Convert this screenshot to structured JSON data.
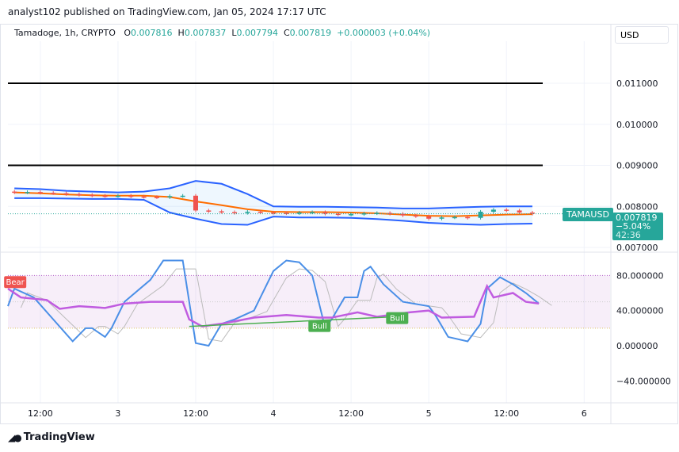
{
  "header": {
    "published": "analyst102 published on TradingView.com, Jan 05, 2024 17:17 UTC"
  },
  "legend": {
    "symbol": "Tamadoge, 1h, CRYPTO",
    "o_label": "O",
    "o": "0.007816",
    "h_label": "H",
    "h": "0.007837",
    "l_label": "L",
    "l": "0.007794",
    "c_label": "C",
    "c": "0.007819",
    "change": "+0.000003 (+0.04%)"
  },
  "currency": "USD",
  "price_tag": {
    "symbol": "TAMAUSD",
    "price": "0.007819",
    "change": "−5.04%",
    "countdown": "42:36"
  },
  "footer": {
    "brand": "TradingView"
  },
  "colors": {
    "up": "#26a69a",
    "down": "#ef5350",
    "band": "#2962ff",
    "mid": "#ff6d00",
    "stoch": "#4a8fe7",
    "rsi": "#c05ce0"
  },
  "chart_data": {
    "type": "candlestick",
    "price_axis": {
      "ticks": [
        "0.011000",
        "0.010000",
        "0.009000",
        "0.008000",
        "0.007000"
      ],
      "values": [
        0.011,
        0.01,
        0.009,
        0.008,
        0.007
      ],
      "range": [
        0.00685,
        0.01135
      ]
    },
    "time_axis": {
      "labels": [
        "12:00",
        "3",
        "12:00",
        "4",
        "12:00",
        "5",
        "12:00",
        "6"
      ],
      "hours": [
        5,
        17,
        29,
        41,
        53,
        65,
        77,
        89
      ],
      "range": [
        0,
        93
      ]
    },
    "horizontal_lines": [
      0.011,
      0.009
    ],
    "closes_every_2h": [
      0.00834,
      0.00835,
      0.00833,
      0.00832,
      0.0083,
      0.00828,
      0.00826,
      0.00825,
      0.00826,
      0.00824,
      0.00823,
      0.00822,
      0.00825,
      0.00826,
      0.0079,
      0.00788,
      0.00786,
      0.00784,
      0.00787,
      0.00785,
      0.00784,
      0.00783,
      0.00785,
      0.00786,
      0.00782,
      0.0078,
      0.00781,
      0.00783,
      0.00784,
      0.00782,
      0.00778,
      0.00776,
      0.0077,
      0.00773,
      0.00774,
      0.00772,
      0.00787,
      0.00792,
      0.0079,
      0.00785,
      0.00782
    ],
    "bollinger_every_4h": {
      "upper": [
        0.00844,
        0.00842,
        0.00838,
        0.00836,
        0.00834,
        0.00836,
        0.00844,
        0.00862,
        0.00855,
        0.0083,
        0.008,
        0.00799,
        0.00799,
        0.00798,
        0.00797,
        0.00795,
        0.00795,
        0.00797,
        0.00799,
        0.008,
        0.008
      ],
      "middle": [
        0.00834,
        0.00832,
        0.00829,
        0.00827,
        0.00826,
        0.00826,
        0.00823,
        0.00812,
        0.00803,
        0.00793,
        0.00787,
        0.00786,
        0.00786,
        0.00785,
        0.00783,
        0.0078,
        0.00777,
        0.00776,
        0.00778,
        0.0078,
        0.00781
      ],
      "lower": [
        0.0082,
        0.0082,
        0.00819,
        0.00818,
        0.00818,
        0.00816,
        0.00785,
        0.0077,
        0.00757,
        0.00755,
        0.00775,
        0.00773,
        0.00773,
        0.00772,
        0.00769,
        0.00765,
        0.0076,
        0.00757,
        0.00755,
        0.00757,
        0.00758
      ]
    },
    "oscillator": {
      "axis_ticks": [
        "80.000000",
        "40.000000",
        "0.000000",
        "−40.000000"
      ],
      "axis_values": [
        80,
        40,
        0,
        -40
      ],
      "range": [
        -65,
        120
      ],
      "band": [
        20,
        80
      ],
      "stoch_hours": [
        0,
        1,
        4,
        7,
        10,
        12,
        13,
        15,
        16,
        18,
        22,
        24,
        27,
        29,
        31,
        33,
        35,
        38,
        41,
        43,
        45,
        47,
        49,
        50,
        52,
        54,
        55,
        56,
        58,
        61,
        65,
        66,
        68,
        71,
        73,
        74,
        76,
        78,
        80,
        82
      ],
      "stoch": [
        45,
        65,
        55,
        30,
        5,
        20,
        20,
        10,
        20,
        50,
        75,
        97,
        97,
        3,
        0,
        25,
        30,
        40,
        85,
        97,
        95,
        80,
        20,
        30,
        55,
        55,
        85,
        90,
        70,
        50,
        45,
        35,
        10,
        5,
        25,
        65,
        78,
        70,
        60,
        48
      ],
      "rsi_hours": [
        0,
        2,
        6,
        8,
        11,
        15,
        18,
        22,
        27,
        28,
        30,
        33,
        38,
        43,
        48,
        50,
        54,
        57,
        62,
        65,
        67,
        72,
        74,
        75,
        78,
        80,
        82
      ],
      "rsi": [
        65,
        55,
        52,
        42,
        45,
        43,
        48,
        50,
        50,
        30,
        22,
        25,
        32,
        35,
        32,
        32,
        38,
        33,
        38,
        40,
        32,
        33,
        68,
        55,
        60,
        50,
        48
      ],
      "labels": [
        {
          "text": "Bear",
          "hour": 1,
          "value": 72
        },
        {
          "text": "Bull",
          "hour": 48,
          "value": 22
        },
        {
          "text": "Bull",
          "hour": 60,
          "value": 31
        }
      ]
    }
  }
}
